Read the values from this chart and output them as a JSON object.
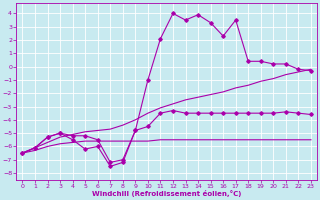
{
  "xlabel": "Windchill (Refroidissement éolien,°C)",
  "background_color": "#c8eaf0",
  "grid_color": "#b0d0d8",
  "line_color": "#aa00aa",
  "xlim": [
    -0.5,
    23.5
  ],
  "ylim": [
    -8.5,
    4.8
  ],
  "yticks": [
    -8,
    -7,
    -6,
    -5,
    -4,
    -3,
    -2,
    -1,
    0,
    1,
    2,
    3,
    4
  ],
  "xticks": [
    0,
    1,
    2,
    3,
    4,
    5,
    6,
    7,
    8,
    9,
    10,
    11,
    12,
    13,
    14,
    15,
    16,
    17,
    18,
    19,
    20,
    21,
    22,
    23
  ],
  "line1_x": [
    0,
    1,
    2,
    3,
    4,
    5,
    6,
    7,
    8,
    9,
    10,
    11,
    12,
    13,
    14,
    15,
    16,
    17,
    18,
    19,
    20,
    21,
    22,
    23
  ],
  "line1_y": [
    -6.5,
    -6.3,
    -6.0,
    -5.8,
    -5.7,
    -5.6,
    -5.6,
    -5.6,
    -5.6,
    -5.6,
    -5.6,
    -5.5,
    -5.5,
    -5.5,
    -5.5,
    -5.5,
    -5.5,
    -5.5,
    -5.5,
    -5.5,
    -5.5,
    -5.5,
    -5.5,
    -5.5
  ],
  "line2_x": [
    0,
    1,
    2,
    3,
    4,
    5,
    6,
    7,
    8,
    9,
    10,
    11,
    12,
    13,
    14,
    15,
    16,
    17,
    18,
    19,
    20,
    21,
    22,
    23
  ],
  "line2_y": [
    -6.5,
    -6.1,
    -5.7,
    -5.3,
    -5.1,
    -4.9,
    -4.8,
    -4.7,
    -4.4,
    -4.0,
    -3.5,
    -3.1,
    -2.8,
    -2.5,
    -2.3,
    -2.1,
    -1.9,
    -1.6,
    -1.4,
    -1.1,
    -0.9,
    -0.6,
    -0.4,
    -0.2
  ],
  "line3_x": [
    0,
    1,
    2,
    3,
    4,
    5,
    6,
    7,
    8,
    9,
    10,
    11,
    12,
    13,
    14,
    15,
    16,
    17,
    18,
    19,
    20,
    21,
    22,
    23
  ],
  "line3_y": [
    -6.5,
    -6.1,
    -5.3,
    -5.0,
    -5.2,
    -5.2,
    -5.5,
    -7.2,
    -7.0,
    -4.8,
    -4.5,
    -3.5,
    -3.3,
    -3.5,
    -3.5,
    -3.5,
    -3.5,
    -3.5,
    -3.5,
    -3.5,
    -3.5,
    -3.4,
    -3.5,
    -3.6
  ],
  "line4_x": [
    0,
    1,
    2,
    3,
    4,
    5,
    6,
    7,
    8,
    9,
    10,
    11,
    12,
    13,
    14,
    15,
    16,
    17,
    18,
    19,
    20,
    21,
    22,
    23
  ],
  "line4_y": [
    -6.5,
    -6.1,
    -5.3,
    -5.0,
    -5.5,
    -6.2,
    -6.0,
    -7.5,
    -7.2,
    -4.8,
    -1.0,
    2.1,
    4.0,
    3.5,
    3.9,
    3.3,
    2.3,
    3.5,
    0.4,
    0.4,
    0.2,
    0.2,
    -0.2,
    -0.3
  ],
  "tick_fontsize": 4.5,
  "xlabel_fontsize": 5.0,
  "lw": 0.8,
  "ms": 1.8
}
